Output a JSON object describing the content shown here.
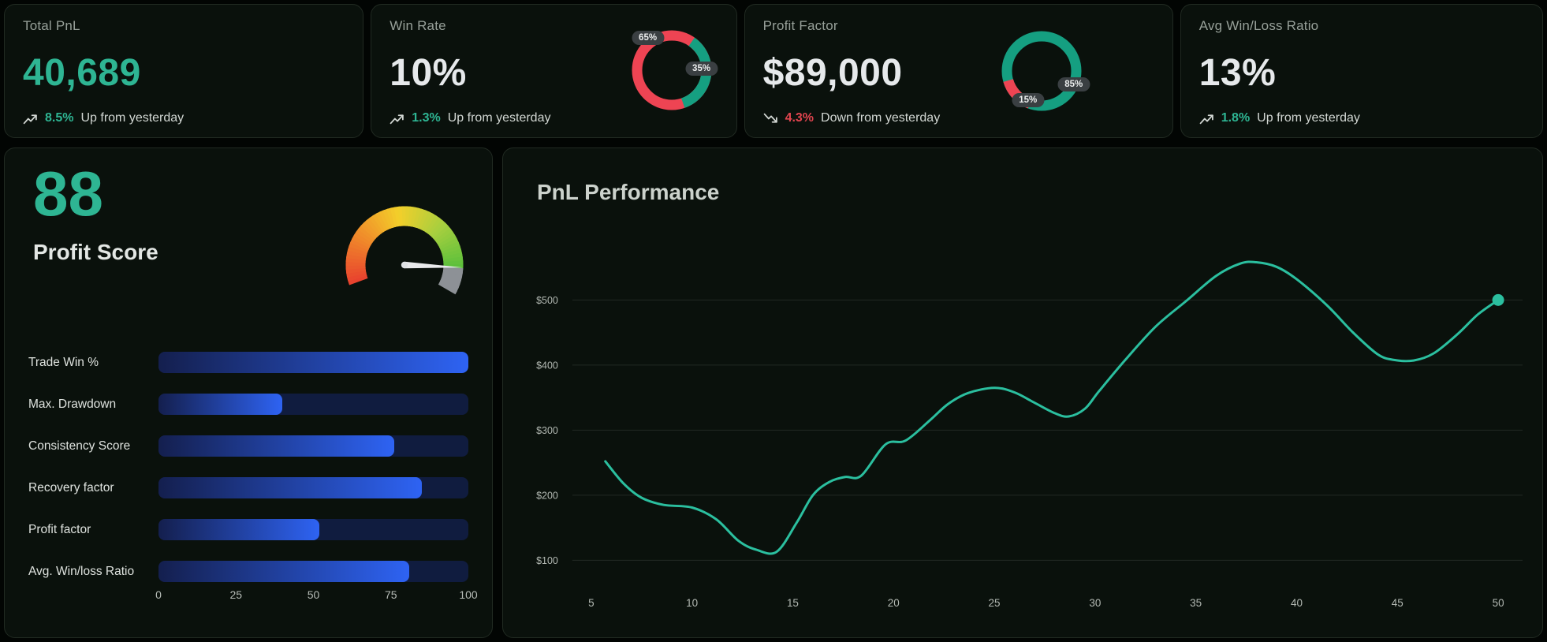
{
  "kpi_cards": [
    {
      "title": "Total PnL",
      "value": "40,689",
      "delta": "8.5%",
      "delta_dir": "up",
      "delta_text": "Up from yesterday"
    },
    {
      "title": "Win Rate",
      "value": "10%",
      "delta": "1.3%",
      "delta_dir": "up",
      "delta_text": "Up from yesterday"
    },
    {
      "title": "Profit Factor",
      "value": "$89,000",
      "delta": "4.3%",
      "delta_dir": "down",
      "delta_text": "Down from yesterday"
    },
    {
      "title": "Avg Win/Loss Ratio",
      "value": "13%",
      "delta": "1.8%",
      "delta_dir": "up",
      "delta_text": "Up from yesterday"
    }
  ],
  "profit_score": {
    "value": "88",
    "label": "Profit Score"
  },
  "colors": {
    "accent_teal": "#2eb593",
    "negative_red": "#e0444e",
    "card_bg": "#0a110c",
    "text_primary": "#e6e9eb",
    "text_muted": "#97a099"
  },
  "chart_data": [
    {
      "id": "win_rate_donut",
      "type": "pie",
      "base": {
        "label": "65%",
        "value": 65,
        "color": "#ee4453"
      },
      "arc": {
        "label": "35%",
        "value": 35,
        "color": "#159f81",
        "rotation_deg": -55
      }
    },
    {
      "id": "profit_factor_donut",
      "type": "pie",
      "base": {
        "label": "85%",
        "value": 85,
        "color": "#159f81"
      },
      "arc": {
        "label": "15%",
        "value": 15,
        "color": "#ee4453",
        "rotation_deg": 110
      }
    },
    {
      "id": "profit_score_gauge",
      "type": "gauge",
      "value": 88,
      "min": 0,
      "max": 100,
      "start_deg": 200,
      "sweep_deg": 230,
      "color_stops": [
        "#e8432e",
        "#f08a2a",
        "#f3cf2a",
        "#a7cf3f",
        "#58bf3b"
      ],
      "rest_color": "#8d9196",
      "needle_color": "#e9eaec"
    },
    {
      "id": "profit_score_bars",
      "type": "bar",
      "categories": [
        "Trade Win %",
        "Max. Drawdown",
        "Consistency Score",
        "Recovery factor",
        "Profit factor",
        "Avg. Win/loss Ratio"
      ],
      "values": [
        100,
        40,
        76,
        85,
        52,
        81
      ],
      "xlim": [
        0,
        100
      ],
      "axis_ticks": [
        0,
        25,
        50,
        75,
        100
      ],
      "track_color": "#101c3f",
      "fill_gradient": [
        "#141f4e",
        "#2e63f3"
      ]
    },
    {
      "id": "pnl_line",
      "type": "line",
      "title": "PnL Performance",
      "xlabel": "",
      "ylabel": "",
      "xlim": [
        5,
        50
      ],
      "ylim": [
        100,
        500
      ],
      "x_ticks": [
        5,
        10,
        15,
        20,
        25,
        30,
        35,
        40,
        45,
        50
      ],
      "y_ticks": [
        "$500",
        "$400",
        "$300",
        "$200",
        "$100"
      ],
      "y_tick_values": [
        500,
        400,
        300,
        200,
        100
      ],
      "grid": true,
      "legend": false,
      "line_color": "#2bbf9f",
      "grid_color": "rgba(255,255,255,0.10)",
      "tick_color": "#b3b9b3",
      "end_dot": true,
      "points": [
        [
          5.7,
          252
        ],
        [
          6.6,
          218
        ],
        [
          7.5,
          196
        ],
        [
          8.6,
          185
        ],
        [
          10,
          181
        ],
        [
          11.2,
          163
        ],
        [
          12.3,
          130
        ],
        [
          13.2,
          116
        ],
        [
          14.2,
          113
        ],
        [
          15.2,
          158
        ],
        [
          16,
          200
        ],
        [
          16.8,
          220
        ],
        [
          17.6,
          228
        ],
        [
          18.4,
          230
        ],
        [
          19.6,
          278
        ],
        [
          20.6,
          284
        ],
        [
          21.8,
          315
        ],
        [
          22.7,
          340
        ],
        [
          23.7,
          357
        ],
        [
          25,
          365
        ],
        [
          26,
          358
        ],
        [
          27,
          342
        ],
        [
          28,
          326
        ],
        [
          28.7,
          321
        ],
        [
          29.5,
          333
        ],
        [
          30.2,
          360
        ],
        [
          31.5,
          408
        ],
        [
          33,
          459
        ],
        [
          34.5,
          498
        ],
        [
          36,
          537
        ],
        [
          37.2,
          556
        ],
        [
          38,
          558
        ],
        [
          39,
          551
        ],
        [
          40,
          532
        ],
        [
          41.5,
          492
        ],
        [
          42.8,
          450
        ],
        [
          44,
          417
        ],
        [
          44.8,
          408
        ],
        [
          45.8,
          407
        ],
        [
          46.8,
          418
        ],
        [
          48,
          448
        ],
        [
          49,
          478
        ],
        [
          50,
          500
        ]
      ]
    }
  ]
}
